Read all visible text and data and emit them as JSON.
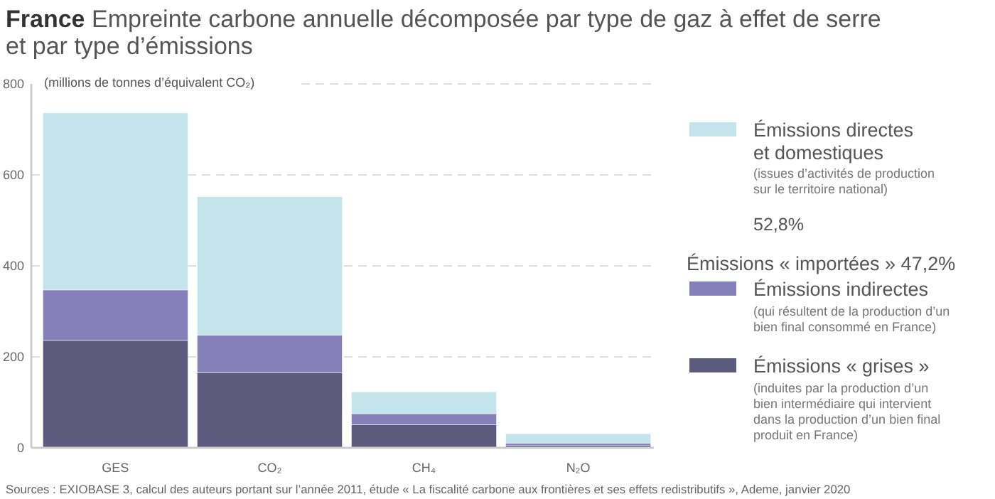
{
  "chart_data": {
    "type": "bar",
    "stacked": true,
    "title": "France",
    "subtitle": "Empreinte carbone annuelle décomposée par type de gaz à effet de serre et par type d’émissions",
    "ylabel": "(millions de tonnes d’équivalent CO₂)",
    "categories": [
      "GES",
      "CO₂",
      "CH₄",
      "N₂O"
    ],
    "series": [
      {
        "name": "Émissions « grises »",
        "color": "#5e5a7e",
        "values": [
          236,
          165,
          51,
          5
        ]
      },
      {
        "name": "Émissions indirectes",
        "color": "#8680b8",
        "values": [
          111,
          83,
          24,
          5
        ]
      },
      {
        "name": "Émissions directes et domestiques",
        "color": "#c2e4ea",
        "values": [
          389,
          304,
          48,
          21
        ]
      }
    ],
    "ylim": [
      0,
      800
    ],
    "yticks": [
      0,
      200,
      400,
      600,
      800
    ],
    "grid": "y",
    "legend": "right",
    "annotations": [
      "(induites par la production d’un bien intermédiaire qui intervient dans la production d’un bien final produit en France)",
      "(qui résultent de la production d’un bien final consommé en France)",
      "(issues d’activités de production sur le territoire national)",
      "52,8%",
      "Émissions « importées » 47,2%",
      "Sources : EXIOBASE 3, calcul des auteurs portant sur l’année 2011, étude « La fiscalité carbone aux frontières et ses effets redistributifs », Ademe, janvier 2020"
    ]
  }
}
